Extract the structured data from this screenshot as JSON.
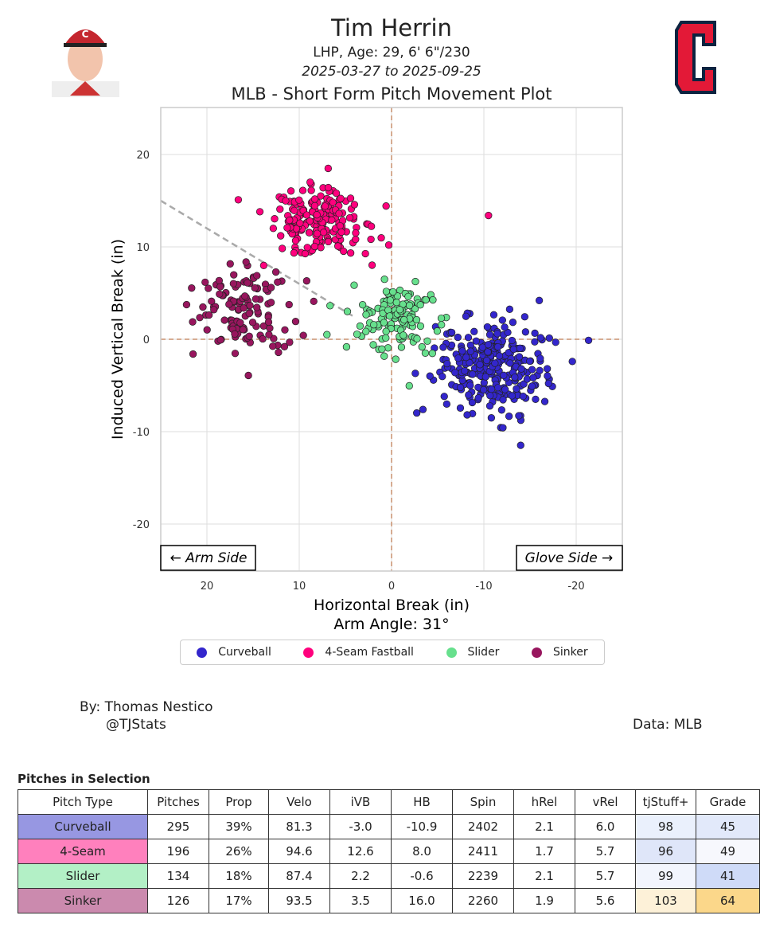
{
  "header": {
    "name": "Tim Herrin",
    "bio": "LHP, Age: 29, 6' 6\"/230",
    "dates": "2025-03-27 to 2025-09-25",
    "team_logo": "Cleveland Guardians C",
    "headshot": "player-headshot"
  },
  "chart_data": {
    "type": "scatter",
    "title": "MLB - Short Form Pitch Movement Plot",
    "xlabel": "Horizontal Break (in)",
    "ylabel": "Induced Vertical Break (in)",
    "subtitle": "Arm Angle: 31°",
    "xlim": [
      25,
      -25
    ],
    "ylim": [
      -25,
      25
    ],
    "xticks": [
      20,
      10,
      0,
      -10,
      -20
    ],
    "yticks": [
      20,
      10,
      0,
      -10,
      -20
    ],
    "grid": true,
    "arm_angle_line": {
      "from": [
        25,
        15
      ],
      "to": [
        4,
        2.4
      ]
    },
    "annotations": [
      "← Arm Side",
      "Glove Side →"
    ],
    "legend_position": "bottom",
    "series": [
      {
        "name": "Curveball",
        "color": "#3326cc",
        "count": 295,
        "mean_hb": -10.9,
        "mean_ivb": -3.0,
        "sd_hb": 3.0,
        "sd_ivb": 2.5,
        "outliers": [
          [
            -16,
            4.2
          ],
          [
            -3.4,
            -7.6
          ]
        ]
      },
      {
        "name": "4-Seam Fastball",
        "color": "#ff007d",
        "count": 196,
        "mean_hb": 8.0,
        "mean_ivb": 12.6,
        "sd_hb": 2.6,
        "sd_ivb": 1.8,
        "outliers": [
          [
            -10.5,
            13.4
          ],
          [
            0.3,
            10.2
          ],
          [
            16.6,
            15.1
          ]
        ]
      },
      {
        "name": "Slider",
        "color": "#67e08d",
        "count": 134,
        "mean_hb": -0.6,
        "mean_ivb": 2.2,
        "sd_hb": 2.3,
        "sd_ivb": 1.8,
        "outliers": [
          [
            7,
            0.5
          ]
        ]
      },
      {
        "name": "Sinker",
        "color": "#98165e",
        "count": 126,
        "mean_hb": 16.0,
        "mean_ivb": 3.5,
        "sd_hb": 2.6,
        "sd_ivb": 2.6,
        "outliers": [
          [
            21.5,
            -1.6
          ]
        ]
      }
    ]
  },
  "footer": {
    "by": "By: Thomas Nestico",
    "handle": "@TJStats",
    "data": "Data: MLB"
  },
  "table": {
    "title": "Pitches in Selection",
    "headers": [
      "Pitch Type",
      "Pitches",
      "Prop",
      "Velo",
      "iVB",
      "HB",
      "Spin",
      "hRel",
      "vRel",
      "tjStuff+",
      "Grade"
    ],
    "rows": [
      {
        "cells": [
          "Curveball",
          "295",
          "39%",
          "81.3",
          "-3.0",
          "-10.9",
          "2402",
          "2.1",
          "6.0",
          "98",
          "45"
        ],
        "color": "#9797e2",
        "stuff_color": "#eaf0fc",
        "grade_color": "#e2e9fa"
      },
      {
        "cells": [
          "4-Seam",
          "196",
          "26%",
          "94.6",
          "12.6",
          "8.0",
          "2411",
          "1.7",
          "5.7",
          "96",
          "49"
        ],
        "color": "#ff80bd",
        "stuff_color": "#dfe6f9",
        "grade_color": "#f7f8fd"
      },
      {
        "cells": [
          "Slider",
          "134",
          "18%",
          "87.4",
          "2.2",
          "-0.6",
          "2239",
          "2.1",
          "5.7",
          "99",
          "41"
        ],
        "color": "#b3f0c6",
        "stuff_color": "#f2f5fd",
        "grade_color": "#cfdbf8"
      },
      {
        "cells": [
          "Sinker",
          "126",
          "17%",
          "93.5",
          "3.5",
          "16.0",
          "2260",
          "1.9",
          "5.6",
          "103",
          "64"
        ],
        "color": "#cb8aae",
        "stuff_color": "#fdf1d8",
        "grade_color": "#fbd78a"
      }
    ]
  }
}
